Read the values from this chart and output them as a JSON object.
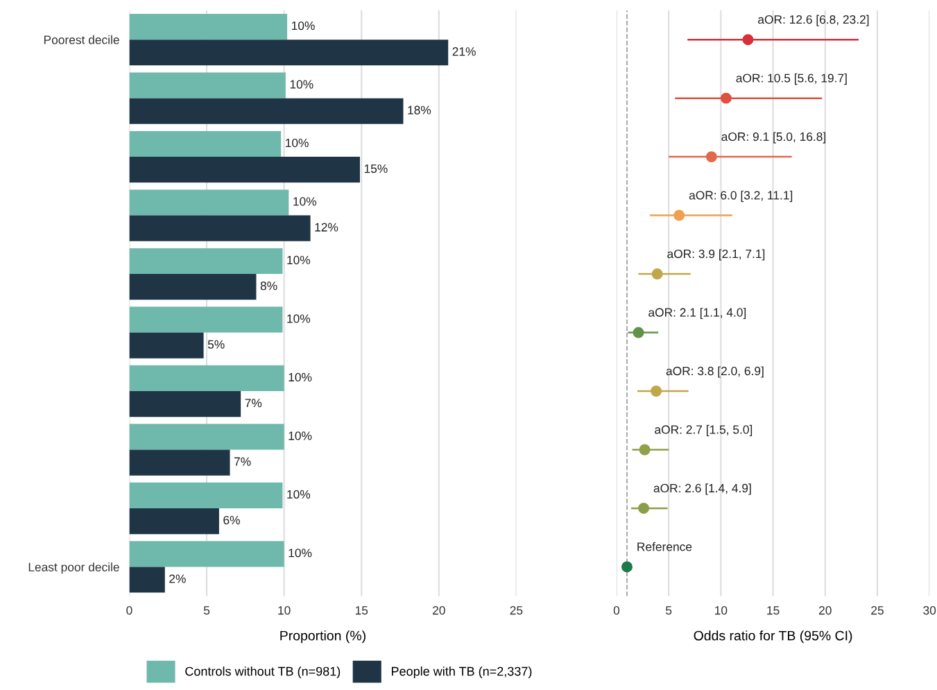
{
  "chart_data": [
    {
      "type": "bar",
      "orientation": "horizontal",
      "xlabel": "Proportion (%)",
      "categories": [
        "Poorest decile",
        null,
        null,
        null,
        null,
        null,
        null,
        null,
        null,
        "Least poor decile"
      ],
      "series": [
        {
          "name": "Controls without TB (n=981)",
          "color": "#6fb9ac",
          "values": [
            10.2,
            10.1,
            9.8,
            10.3,
            9.9,
            9.9,
            10.0,
            10.0,
            9.9,
            10.0
          ],
          "value_labels": [
            "10%",
            "10%",
            "10%",
            "10%",
            "10%",
            "10%",
            "10%",
            "10%",
            "10%",
            "10%"
          ]
        },
        {
          "name": "People with TB (n=2,337)",
          "color": "#1f3445",
          "values": [
            20.6,
            17.7,
            14.9,
            11.7,
            8.2,
            4.8,
            7.2,
            6.5,
            5.8,
            2.3
          ],
          "value_labels": [
            "21%",
            "18%",
            "15%",
            "12%",
            "8%",
            "5%",
            "7%",
            "7%",
            "6%",
            "2%"
          ]
        }
      ],
      "xlim": [
        0,
        25
      ],
      "xticks": [
        0,
        5,
        10,
        15,
        20,
        25
      ],
      "grid": "x",
      "legend": "bottom"
    },
    {
      "type": "scatter",
      "orientation": "horizontal",
      "xlabel": "Odds ratio for TB (95% CI)",
      "categories": [
        null,
        null,
        null,
        null,
        null,
        null,
        null,
        null,
        null,
        null
      ],
      "values": [
        12.6,
        10.5,
        9.1,
        6.0,
        3.9,
        2.1,
        3.8,
        2.7,
        2.6,
        1
      ],
      "errors": [
        [
          6.8,
          23.2
        ],
        [
          5.6,
          19.7
        ],
        [
          5.0,
          16.8
        ],
        [
          3.2,
          11.1
        ],
        [
          2.1,
          7.1
        ],
        [
          1.1,
          4.0
        ],
        [
          2.0,
          6.9
        ],
        [
          1.5,
          5.0
        ],
        [
          1.4,
          4.9
        ],
        null
      ],
      "value_labels": [
        "aOR: 12.6 [6.8, 23.2]",
        "aOR: 10.5 [5.6, 19.7]",
        "aOR: 9.1 [5.0, 16.8]",
        "aOR: 6.0 [3.2, 11.1]",
        "aOR: 3.9 [2.1, 7.1]",
        "aOR: 2.1 [1.1, 4.0]",
        "aOR: 3.8 [2.0, 6.9]",
        "aOR: 2.7 [1.5, 5.0]",
        "aOR: 2.6 [1.4, 4.9]",
        "Reference"
      ],
      "colors": [
        "#d7303a",
        "#e0503f",
        "#e2684a",
        "#f0a050",
        "#c1a64a",
        "#5e9448",
        "#c1a64a",
        "#8fa049",
        "#8a9f4a",
        "#1f7a4a"
      ],
      "marker": "circle",
      "ref_lines": [
        {
          "axis": "x",
          "value": 1,
          "color": "#a0a0a0",
          "line_style": "dashed"
        }
      ],
      "xlim": [
        0,
        30
      ],
      "xticks": [
        0,
        5,
        10,
        15,
        20,
        25,
        30
      ],
      "grid": "x"
    }
  ]
}
